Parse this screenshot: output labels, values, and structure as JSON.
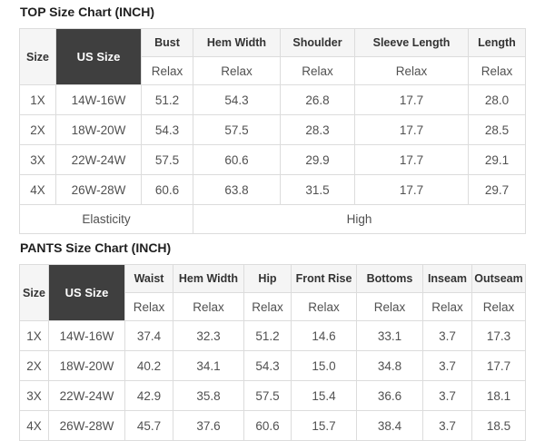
{
  "top_chart": {
    "title": "TOP Size Chart (INCH)",
    "header": {
      "size_label": "Size",
      "us_size_label": "US Size",
      "measure_columns": [
        "Bust",
        "Hem Width",
        "Shoulder",
        "Sleeve Length",
        "Length"
      ],
      "fit_label": "Relax"
    },
    "rows": [
      {
        "size": "1X",
        "us_size": "14W-16W",
        "values": [
          "51.2",
          "54.3",
          "26.8",
          "17.7",
          "28.0"
        ]
      },
      {
        "size": "2X",
        "us_size": "18W-20W",
        "values": [
          "54.3",
          "57.5",
          "28.3",
          "17.7",
          "28.5"
        ]
      },
      {
        "size": "3X",
        "us_size": "22W-24W",
        "values": [
          "57.5",
          "60.6",
          "29.9",
          "17.7",
          "29.1"
        ]
      },
      {
        "size": "4X",
        "us_size": "26W-28W",
        "values": [
          "60.6",
          "63.8",
          "31.5",
          "17.7",
          "29.7"
        ]
      }
    ],
    "footer": {
      "label": "Elasticity",
      "value": "High"
    }
  },
  "pants_chart": {
    "title": "PANTS Size Chart (INCH)",
    "header": {
      "size_label": "Size",
      "us_size_label": "US Size",
      "measure_columns": [
        "Waist",
        "Hem Width",
        "Hip",
        "Front Rise",
        "Bottoms",
        "Inseam",
        "Outseam"
      ],
      "fit_label": "Relax"
    },
    "rows": [
      {
        "size": "1X",
        "us_size": "14W-16W",
        "values": [
          "37.4",
          "32.3",
          "51.2",
          "14.6",
          "33.1",
          "3.7",
          "17.3"
        ]
      },
      {
        "size": "2X",
        "us_size": "18W-20W",
        "values": [
          "40.2",
          "34.1",
          "54.3",
          "15.0",
          "34.8",
          "3.7",
          "17.7"
        ]
      },
      {
        "size": "3X",
        "us_size": "22W-24W",
        "values": [
          "42.9",
          "35.8",
          "57.5",
          "15.4",
          "36.6",
          "3.7",
          "18.1"
        ]
      },
      {
        "size": "4X",
        "us_size": "26W-28W",
        "values": [
          "45.7",
          "37.6",
          "60.6",
          "15.7",
          "38.4",
          "3.7",
          "18.5"
        ]
      }
    ]
  },
  "colors": {
    "us_size_header_bg": "#3f3f3f",
    "us_size_header_text": "#ffffff",
    "header_bg": "#f5f5f5",
    "border": "#dcdcdc",
    "body_text": "#515151",
    "title_text": "#1f1f1f"
  }
}
